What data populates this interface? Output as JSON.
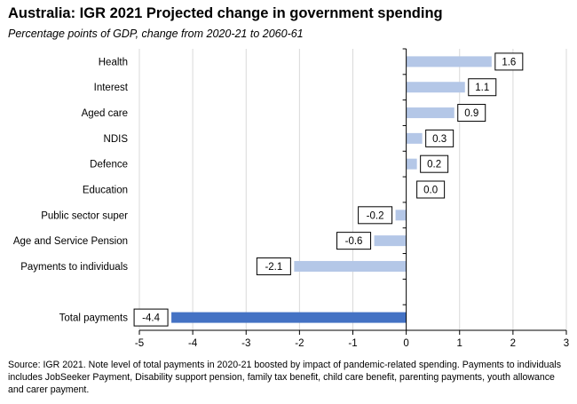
{
  "title": "Australia: IGR 2021 Projected change in government spending",
  "subtitle": "Percentage points of GDP, change from 2020-21  to 2060-61",
  "source": "Source: IGR 2021.  Note level of total payments in 2020-21 boosted by impact of pandemic-related spending.  Payments to individuals includes JobSeeker Payment, Disability support pension, family tax benefit, child care benefit, parenting payments, youth allowance and carer payment.",
  "colors": {
    "component": "#b4c7e7",
    "total": "#4472c4",
    "grid": "#d9d9d9",
    "axis": "#000000"
  },
  "chart_data": {
    "type": "bar",
    "orientation": "horizontal",
    "categories": [
      "Health",
      "Interest",
      "Aged care",
      "NDIS",
      "Defence",
      "Education",
      "Public sector super",
      "Age and Service Pension",
      "Payments to individuals",
      "Total payments"
    ],
    "values": [
      1.6,
      1.1,
      0.9,
      0.3,
      0.2,
      0.0,
      -0.2,
      -0.6,
      -2.1,
      -4.4
    ],
    "data_labels": [
      "1.6",
      "1.1",
      "0.9",
      "0.3",
      "0.2",
      "0.0",
      "-0.2",
      "-0.6",
      "-2.1",
      "-4.4"
    ],
    "xlim": [
      -5,
      3
    ],
    "xticks": [
      -5,
      -4,
      -3,
      -2,
      -1,
      0,
      1,
      2,
      3
    ],
    "grid": "vertical",
    "legend": "none"
  }
}
